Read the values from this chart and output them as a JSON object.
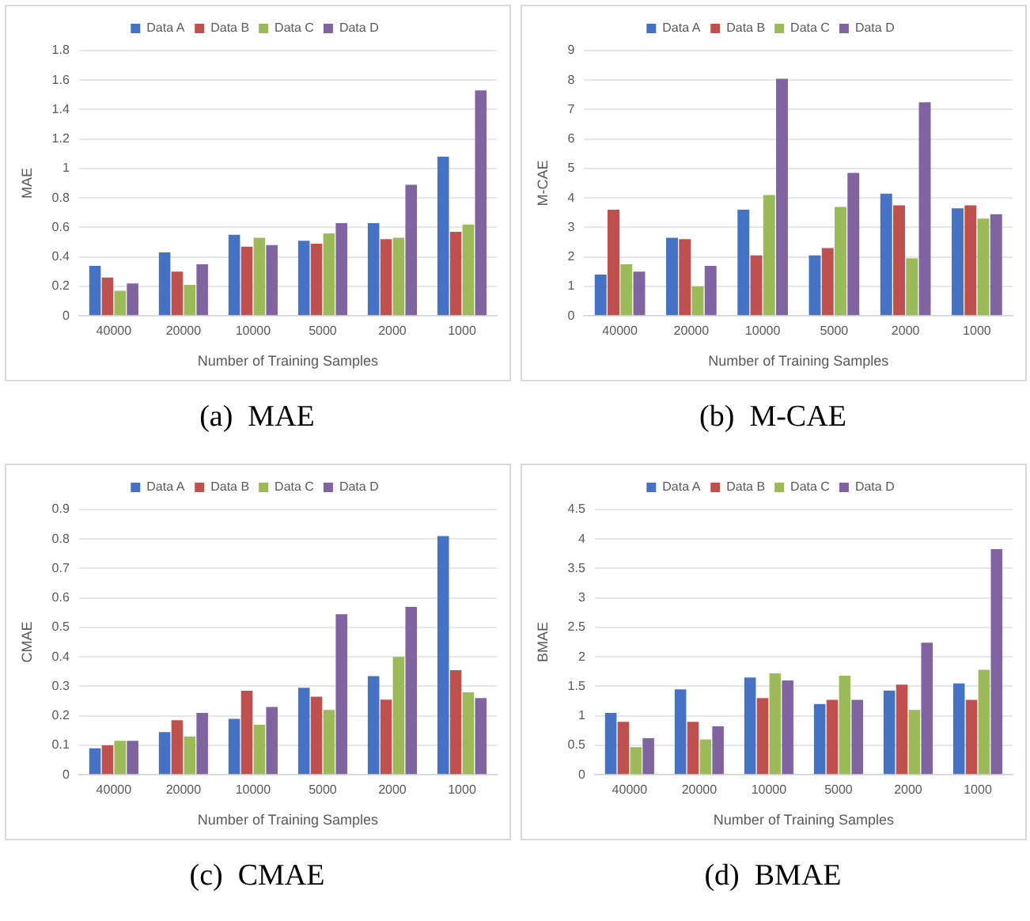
{
  "chart_data": [
    {
      "type": "bar",
      "xlabel": "Number of Training Samples",
      "ylabel": "MAE",
      "categories": [
        "40000",
        "20000",
        "10000",
        "5000",
        "2000",
        "1000"
      ],
      "series": [
        {
          "name": "Data A",
          "color": "#4472c4",
          "values": [
            0.34,
            0.43,
            0.55,
            0.51,
            0.63,
            1.08
          ]
        },
        {
          "name": "Data B",
          "color": "#c0504d",
          "values": [
            0.26,
            0.3,
            0.47,
            0.49,
            0.52,
            0.57
          ]
        },
        {
          "name": "Data C",
          "color": "#9bbb59",
          "values": [
            0.17,
            0.21,
            0.53,
            0.56,
            0.53,
            0.62
          ]
        },
        {
          "name": "Data D",
          "color": "#8064a2",
          "values": [
            0.22,
            0.35,
            0.48,
            0.63,
            0.89,
            1.53
          ]
        }
      ],
      "ylim": [
        0,
        1.8
      ],
      "yticks": [
        0,
        0.2,
        0.4,
        0.6,
        0.8,
        1,
        1.2,
        1.4,
        1.6,
        1.8
      ],
      "grid": "y",
      "legend": "top",
      "annotations": [
        "(a)  MAE"
      ]
    },
    {
      "type": "bar",
      "xlabel": "Number of Training Samples",
      "ylabel": "M-CAE",
      "categories": [
        "40000",
        "20000",
        "10000",
        "5000",
        "2000",
        "1000"
      ],
      "series": [
        {
          "name": "Data A",
          "color": "#4472c4",
          "values": [
            1.4,
            2.65,
            3.6,
            2.05,
            4.15,
            3.65
          ]
        },
        {
          "name": "Data B",
          "color": "#c0504d",
          "values": [
            3.6,
            2.6,
            2.05,
            2.3,
            3.75,
            3.75
          ]
        },
        {
          "name": "Data C",
          "color": "#9bbb59",
          "values": [
            1.75,
            1.0,
            4.1,
            3.7,
            1.95,
            3.3
          ]
        },
        {
          "name": "Data D",
          "color": "#8064a2",
          "values": [
            1.5,
            1.7,
            8.05,
            4.85,
            7.25,
            3.45
          ]
        }
      ],
      "ylim": [
        0,
        9
      ],
      "yticks": [
        0,
        1,
        2,
        3,
        4,
        5,
        6,
        7,
        8,
        9
      ],
      "grid": "y",
      "legend": "top",
      "annotations": [
        "(b)  M-CAE"
      ]
    },
    {
      "type": "bar",
      "xlabel": "Number of Training Samples",
      "ylabel": "CMAE",
      "categories": [
        "40000",
        "20000",
        "10000",
        "5000",
        "2000",
        "1000"
      ],
      "series": [
        {
          "name": "Data A",
          "color": "#4472c4",
          "values": [
            0.09,
            0.145,
            0.19,
            0.295,
            0.335,
            0.81
          ]
        },
        {
          "name": "Data B",
          "color": "#c0504d",
          "values": [
            0.1,
            0.185,
            0.285,
            0.265,
            0.255,
            0.355
          ]
        },
        {
          "name": "Data C",
          "color": "#9bbb59",
          "values": [
            0.115,
            0.13,
            0.17,
            0.22,
            0.4,
            0.28
          ]
        },
        {
          "name": "Data D",
          "color": "#8064a2",
          "values": [
            0.115,
            0.21,
            0.23,
            0.545,
            0.57,
            0.26
          ]
        }
      ],
      "ylim": [
        0,
        0.9
      ],
      "yticks": [
        0,
        0.1,
        0.2,
        0.3,
        0.4,
        0.5,
        0.6,
        0.7,
        0.8,
        0.9
      ],
      "grid": "y",
      "legend": "top",
      "annotations": [
        "(c)  CMAE"
      ]
    },
    {
      "type": "bar",
      "xlabel": "Number of Training Samples",
      "ylabel": "BMAE",
      "categories": [
        "40000",
        "20000",
        "10000",
        "5000",
        "2000",
        "1000"
      ],
      "series": [
        {
          "name": "Data A",
          "color": "#4472c4",
          "values": [
            1.05,
            1.45,
            1.65,
            1.2,
            1.43,
            1.55
          ]
        },
        {
          "name": "Data B",
          "color": "#c0504d",
          "values": [
            0.9,
            0.9,
            1.3,
            1.27,
            1.53,
            1.27
          ]
        },
        {
          "name": "Data C",
          "color": "#9bbb59",
          "values": [
            0.47,
            0.6,
            1.72,
            1.68,
            1.1,
            1.78
          ]
        },
        {
          "name": "Data D",
          "color": "#8064a2",
          "values": [
            0.62,
            0.82,
            1.6,
            1.27,
            2.24,
            3.83
          ]
        }
      ],
      "ylim": [
        0,
        4.5
      ],
      "yticks": [
        0,
        0.5,
        1,
        1.5,
        2,
        2.5,
        3,
        3.5,
        4,
        4.5
      ],
      "grid": "y",
      "legend": "top",
      "annotations": [
        "(d)  BMAE"
      ]
    }
  ]
}
